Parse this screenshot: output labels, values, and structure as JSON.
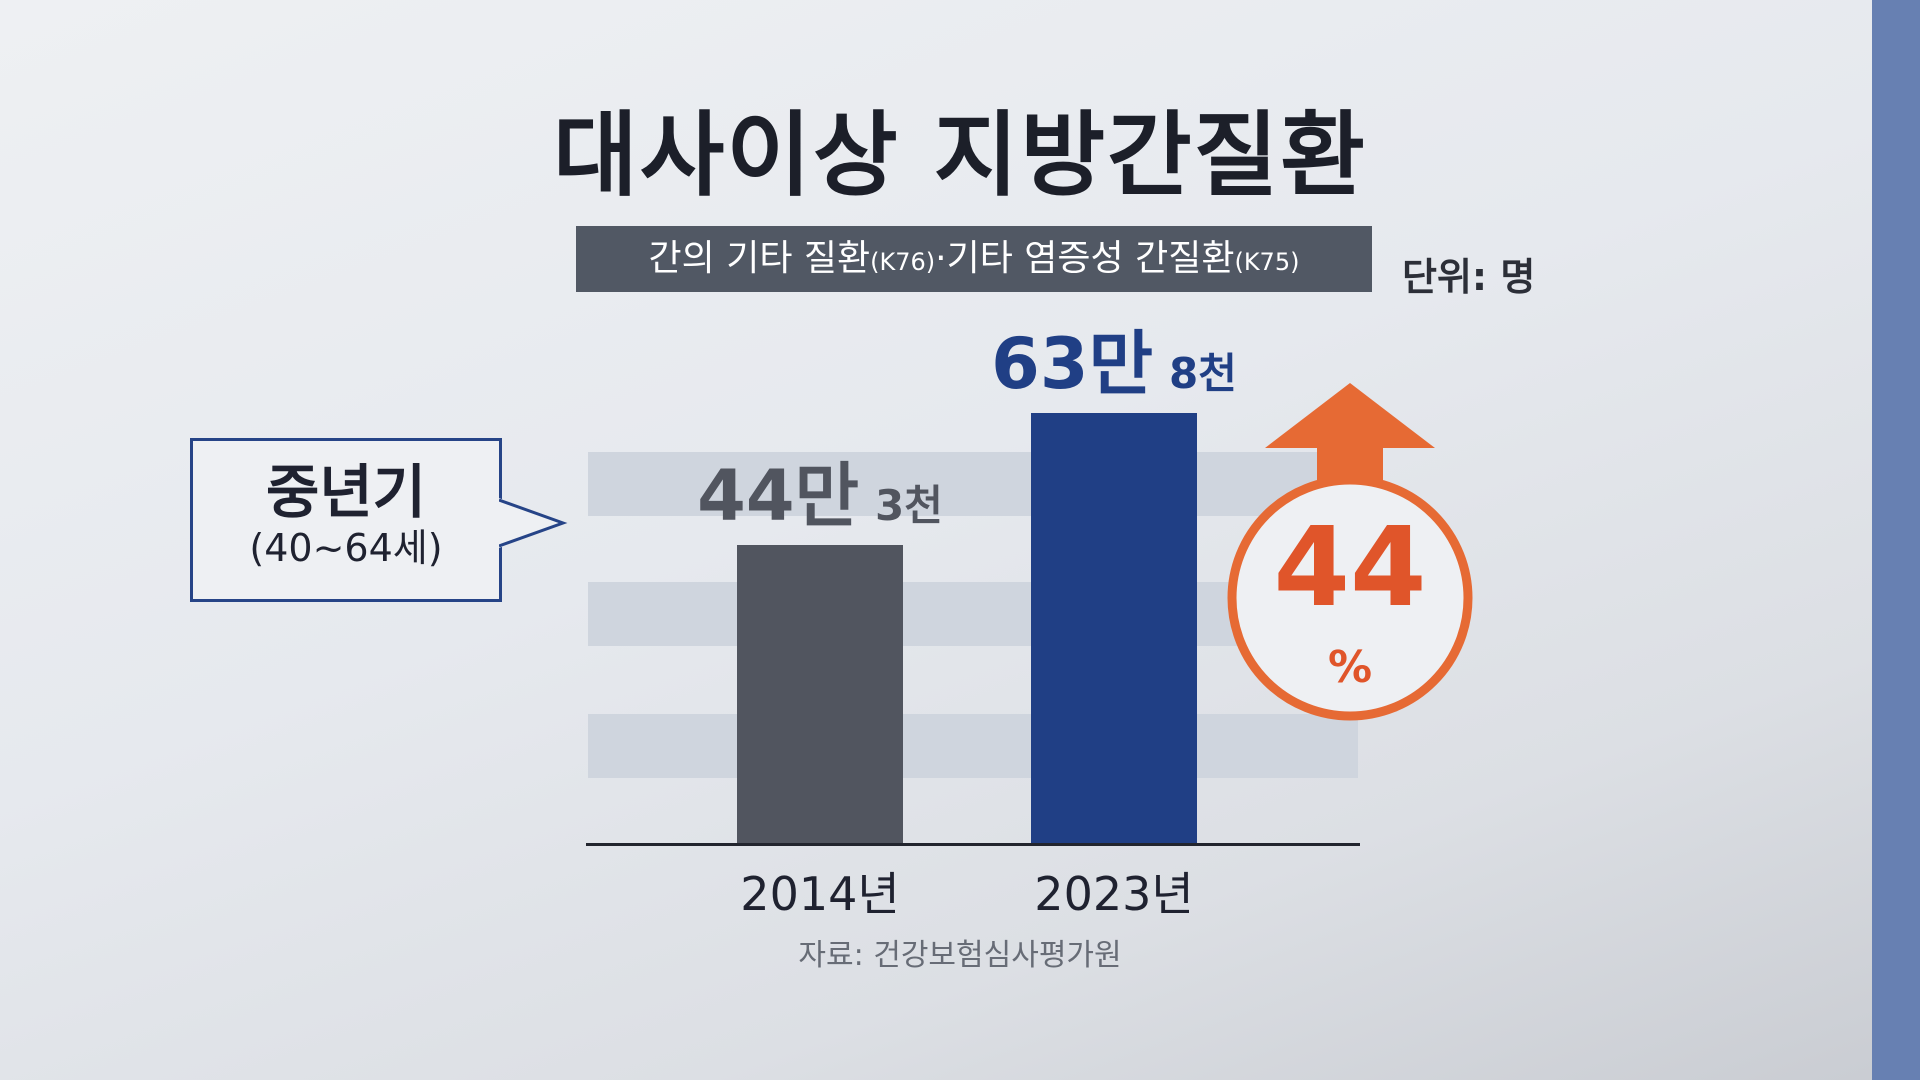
{
  "header": {
    "title": "대사이상 지방간질환",
    "subtitle_text": "간의 기타 질환",
    "subtitle_code1": "(K76)",
    "subtitle_text2": "·기타 염증성 간질환",
    "subtitle_code2": "(K75)",
    "unit_label": "단위: 명"
  },
  "callout": {
    "main": "중년기",
    "sub": "(40~64세)"
  },
  "chart_data": {
    "type": "bar",
    "categories": [
      "2014년",
      "2023년"
    ],
    "values": [
      443000,
      638000
    ],
    "value_labels": [
      {
        "big": "44만",
        "small": "3천"
      },
      {
        "big": "63만",
        "small": "8천"
      }
    ],
    "colors": [
      "#51555f",
      "#203f85"
    ],
    "label_colors": [
      "#51555f",
      "#203f85"
    ],
    "ylim": [
      0,
      680000
    ],
    "grid": false,
    "growth": {
      "value": "44",
      "unit": "%",
      "color": "#e66a34"
    }
  },
  "source": "자료: 건강보험심사평가원",
  "colors": {
    "accent_orange": "#e66a34",
    "navy": "#203f85",
    "gray_bar": "#51555f",
    "side_strip": "#6780b2"
  }
}
